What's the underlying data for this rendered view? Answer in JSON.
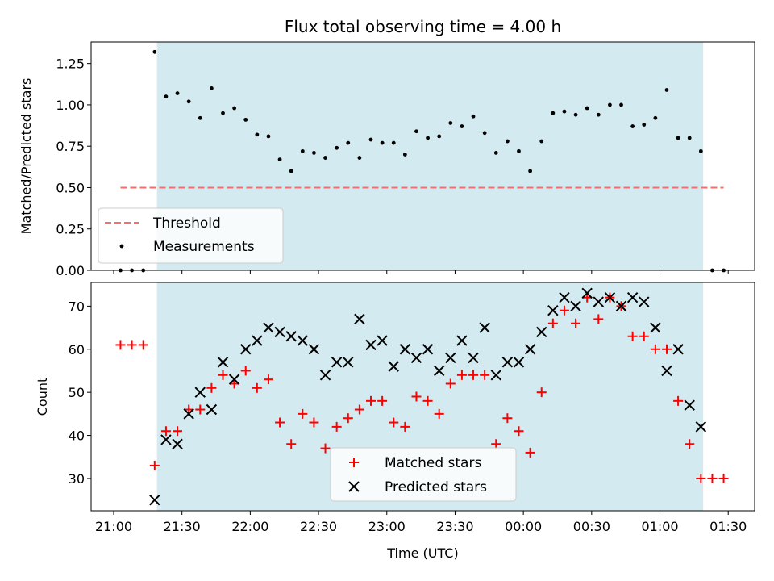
{
  "chart_data": [
    {
      "type": "scatter",
      "title": "Flux total observing time = 4.00 h",
      "xlabel": "",
      "ylabel": "Matched/Predicted stars",
      "ylim": [
        0,
        1.38
      ],
      "yticks": [
        "0.00",
        "0.25",
        "0.50",
        "0.75",
        "1.00",
        "1.25"
      ],
      "grid": false,
      "legend_position": "lower-left",
      "shaded_region_x": [
        "21:19",
        "01:19"
      ],
      "shaded_color": "#d4eaf1",
      "threshold": {
        "name": "Threshold",
        "value": 0.5,
        "x_start": "21:03",
        "x_end": "01:28",
        "color": "#f07070"
      },
      "series": [
        {
          "name": "Measurements",
          "color": "#000000",
          "x": [
            "21:03",
            "21:08",
            "21:13",
            "21:18",
            "21:23",
            "21:28",
            "21:33",
            "21:38",
            "21:43",
            "21:48",
            "21:53",
            "21:58",
            "22:03",
            "22:08",
            "22:13",
            "22:18",
            "22:23",
            "22:28",
            "22:33",
            "22:38",
            "22:43",
            "22:48",
            "22:53",
            "22:58",
            "23:03",
            "23:08",
            "23:13",
            "23:18",
            "23:23",
            "23:28",
            "23:33",
            "23:38",
            "23:43",
            "23:48",
            "23:53",
            "23:58",
            "00:03",
            "00:08",
            "00:13",
            "00:18",
            "00:23",
            "00:28",
            "00:33",
            "00:38",
            "00:43",
            "00:48",
            "00:53",
            "00:58",
            "01:03",
            "01:08",
            "01:13",
            "01:18",
            "01:23",
            "01:28"
          ],
          "y": [
            0,
            0,
            0,
            1.32,
            1.05,
            1.07,
            1.02,
            0.92,
            1.1,
            0.95,
            0.98,
            0.91,
            0.82,
            0.81,
            0.67,
            0.6,
            0.72,
            0.71,
            0.68,
            0.74,
            0.77,
            0.68,
            0.79,
            0.77,
            0.77,
            0.7,
            0.84,
            0.8,
            0.81,
            0.89,
            0.87,
            0.93,
            0.83,
            0.71,
            0.78,
            0.72,
            0.6,
            0.78,
            0.95,
            0.96,
            0.94,
            0.98,
            0.94,
            1.0,
            1.0,
            0.87,
            0.88,
            0.92,
            1.09,
            0.8,
            0.8,
            0.72,
            0,
            0
          ]
        }
      ]
    },
    {
      "type": "scatter",
      "title": "",
      "xlabel": "Time (UTC)",
      "ylabel": "Count",
      "ylim": [
        22.5,
        75.5
      ],
      "yticks": [
        "30",
        "40",
        "50",
        "60",
        "70"
      ],
      "xticks": [
        "21:00",
        "21:30",
        "22:00",
        "22:30",
        "23:00",
        "23:30",
        "00:00",
        "00:30",
        "01:00",
        "01:30"
      ],
      "grid": false,
      "legend_position": "lower-center",
      "shaded_region_x": [
        "21:19",
        "01:19"
      ],
      "shaded_color": "#d4eaf1",
      "series": [
        {
          "name": "Matched stars",
          "marker": "+",
          "color": "#ff0000",
          "x": [
            "21:03",
            "21:08",
            "21:13",
            "21:18",
            "21:23",
            "21:28",
            "21:33",
            "21:38",
            "21:43",
            "21:48",
            "21:53",
            "21:58",
            "22:03",
            "22:08",
            "22:13",
            "22:18",
            "22:23",
            "22:28",
            "22:33",
            "22:38",
            "22:43",
            "22:48",
            "22:53",
            "22:58",
            "23:03",
            "23:08",
            "23:13",
            "23:18",
            "23:23",
            "23:28",
            "23:33",
            "23:38",
            "23:43",
            "23:48",
            "23:53",
            "23:58",
            "00:03",
            "00:08",
            "00:13",
            "00:18",
            "00:23",
            "00:28",
            "00:33",
            "00:38",
            "00:43",
            "00:48",
            "00:53",
            "00:58",
            "01:03",
            "01:08",
            "01:13",
            "01:18",
            "01:23",
            "01:28"
          ],
          "y": [
            61,
            61,
            61,
            33,
            41,
            41,
            46,
            46,
            51,
            54,
            52,
            55,
            51,
            53,
            43,
            38,
            45,
            43,
            37,
            42,
            44,
            46,
            48,
            48,
            43,
            42,
            49,
            48,
            45,
            52,
            54,
            54,
            54,
            38,
            44,
            41,
            36,
            50,
            66,
            69,
            66,
            72,
            67,
            72,
            70,
            63,
            63,
            60,
            60,
            48,
            38,
            30,
            30,
            30
          ]
        },
        {
          "name": "Predicted stars",
          "marker": "x",
          "color": "#000000",
          "x": [
            "21:18",
            "21:23",
            "21:28",
            "21:33",
            "21:38",
            "21:43",
            "21:48",
            "21:53",
            "21:58",
            "22:03",
            "22:08",
            "22:13",
            "22:18",
            "22:23",
            "22:28",
            "22:33",
            "22:38",
            "22:43",
            "22:48",
            "22:53",
            "22:58",
            "23:03",
            "23:08",
            "23:13",
            "23:18",
            "23:23",
            "23:28",
            "23:33",
            "23:38",
            "23:43",
            "23:48",
            "23:53",
            "23:58",
            "00:03",
            "00:08",
            "00:13",
            "00:18",
            "00:23",
            "00:28",
            "00:33",
            "00:38",
            "00:43",
            "00:48",
            "00:53",
            "00:58",
            "01:03",
            "01:08",
            "01:13",
            "01:18"
          ],
          "y": [
            25,
            39,
            38,
            45,
            50,
            46,
            57,
            53,
            60,
            62,
            65,
            64,
            63,
            62,
            60,
            54,
            57,
            57,
            67,
            61,
            62,
            56,
            60,
            58,
            60,
            55,
            58,
            62,
            58,
            65,
            54,
            57,
            57,
            60,
            64,
            69,
            72,
            70,
            73,
            71,
            72,
            70,
            72,
            71,
            65,
            55,
            60,
            47,
            42
          ]
        }
      ]
    }
  ]
}
